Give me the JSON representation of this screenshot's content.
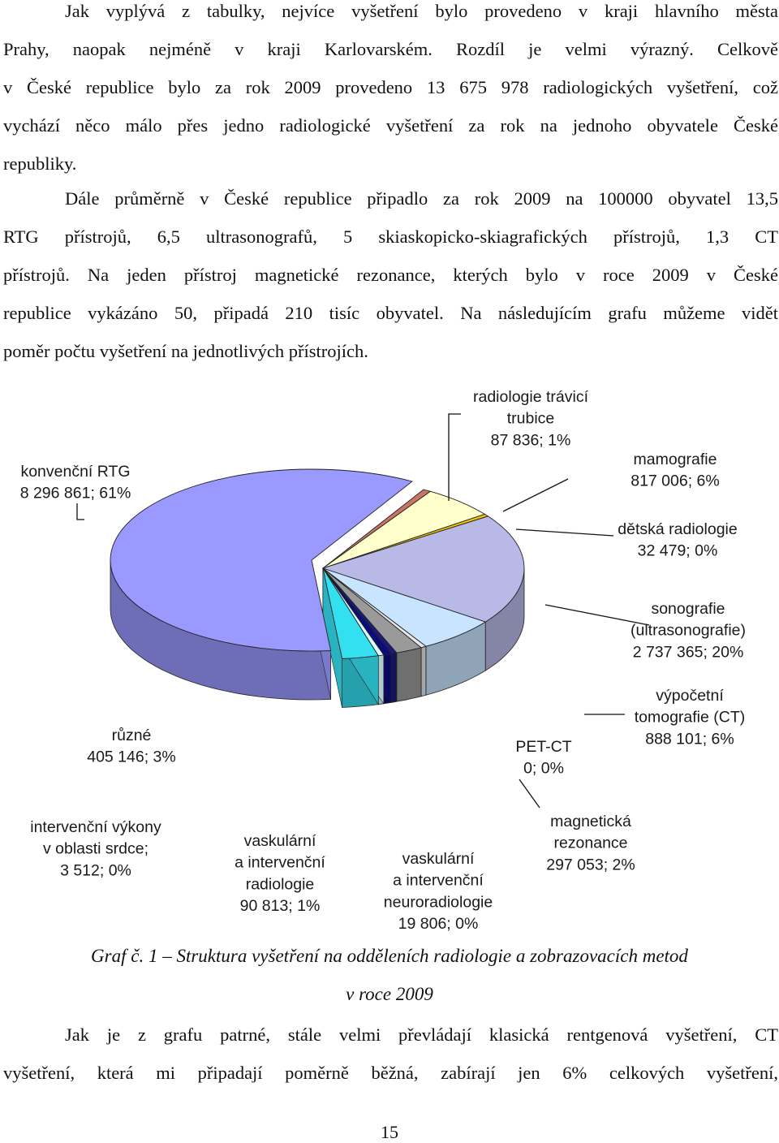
{
  "paragraph1": {
    "lines": [
      "Jak vyplývá z tabulky, nejvíce vyšetření bylo provedeno v kraji hlavního města",
      "Prahy, naopak nejméně v kraji Karlovarském. Rozdíl je velmi výrazný. Celkově",
      "v České republice bylo za rok 2009 provedeno 13 675 978 radiologických vyšetření, což",
      "vychází něco málo přes jedno radiologické vyšetření za rok na jednoho obyvatele České",
      "republiky."
    ]
  },
  "paragraph2": {
    "lines": [
      "Dále průměrně v České republice připadlo za rok 2009 na 100000 obyvatel 13,5",
      "RTG přístrojů, 6,5 ultrasonografů, 5 skiaskopicko-skiagrafických přístrojů, 1,3 CT",
      "přístrojů. Na jeden přístroj magnetické rezonance, kterých bylo v roce 2009 v České",
      "republice vykázáno 50, připadá 210 tisíc obyvatel. Na následujícím grafu můžeme vidět",
      "poměr počtu vyšetření na jednotlivých přístrojích."
    ]
  },
  "chart_data": {
    "type": "pie",
    "style": "3d-exploded",
    "slices": [
      {
        "label": [
          "konvenční RTG",
          "8 296 861; 61%"
        ],
        "value": 8296861,
        "percent": 61,
        "color": "#9999ff"
      },
      {
        "label": [
          "radiologie trávicí",
          "trubice",
          "87 836; 1%"
        ],
        "value": 87836,
        "percent": 1,
        "color": "#c87566"
      },
      {
        "label": [
          "mamografie",
          "817 006; 6%"
        ],
        "value": 817006,
        "percent": 6,
        "color": "#ffffcc"
      },
      {
        "label": [
          "dětská radiologie",
          "32 479; 0%"
        ],
        "value": 32479,
        "percent": 0,
        "color": "#f2c200"
      },
      {
        "label": [
          "sonografie",
          "(ultrasonografie)",
          "2 737 365; 20%"
        ],
        "value": 2737365,
        "percent": 20,
        "color": "#b9b9e8"
      },
      {
        "label": [
          "výpočetní",
          "tomografie (CT)",
          "888 101; 6%"
        ],
        "value": 888101,
        "percent": 6,
        "color": "#c8e4ff"
      },
      {
        "label": [
          "PET-CT",
          "0; 0%"
        ],
        "value": 0,
        "percent": 0,
        "color": "#e6e6e6"
      },
      {
        "label": [
          "magnetická",
          "rezonance",
          "297 053; 2%"
        ],
        "value": 297053,
        "percent": 2,
        "color": "#9a9a9a"
      },
      {
        "label": [
          "vaskulární",
          "a intervenční",
          "neuroradiologie",
          "19 806; 0%"
        ],
        "value": 19806,
        "percent": 0,
        "color": "#1a1a80"
      },
      {
        "label": [
          "vaskulární",
          "a intervenční",
          "radiologie",
          "90 813; 1%"
        ],
        "value": 90813,
        "percent": 1,
        "color": "#0b0b7a"
      },
      {
        "label": [
          "intervenční výkony",
          "v oblasti srdce;",
          "3 512; 0%"
        ],
        "value": 3512,
        "percent": 0,
        "color": "#d9ffff"
      },
      {
        "label": [
          "různé",
          "405 146; 3%"
        ],
        "value": 405146,
        "percent": 3,
        "color": "#33e0f0"
      }
    ]
  },
  "caption": {
    "line1": "Graf č. 1 – Struktura vyšetření na odděleních radiologie a zobrazovacích metod",
    "line2": "v roce 2009"
  },
  "paragraph3": {
    "lines": [
      "Jak je z grafu patrné, stále velmi převládají klasická rentgenová vyšetření, CT",
      "vyšetření, která mi připadají poměrně běžná, zabírají jen 6% celkových vyšetření,"
    ]
  },
  "page_number": "15"
}
